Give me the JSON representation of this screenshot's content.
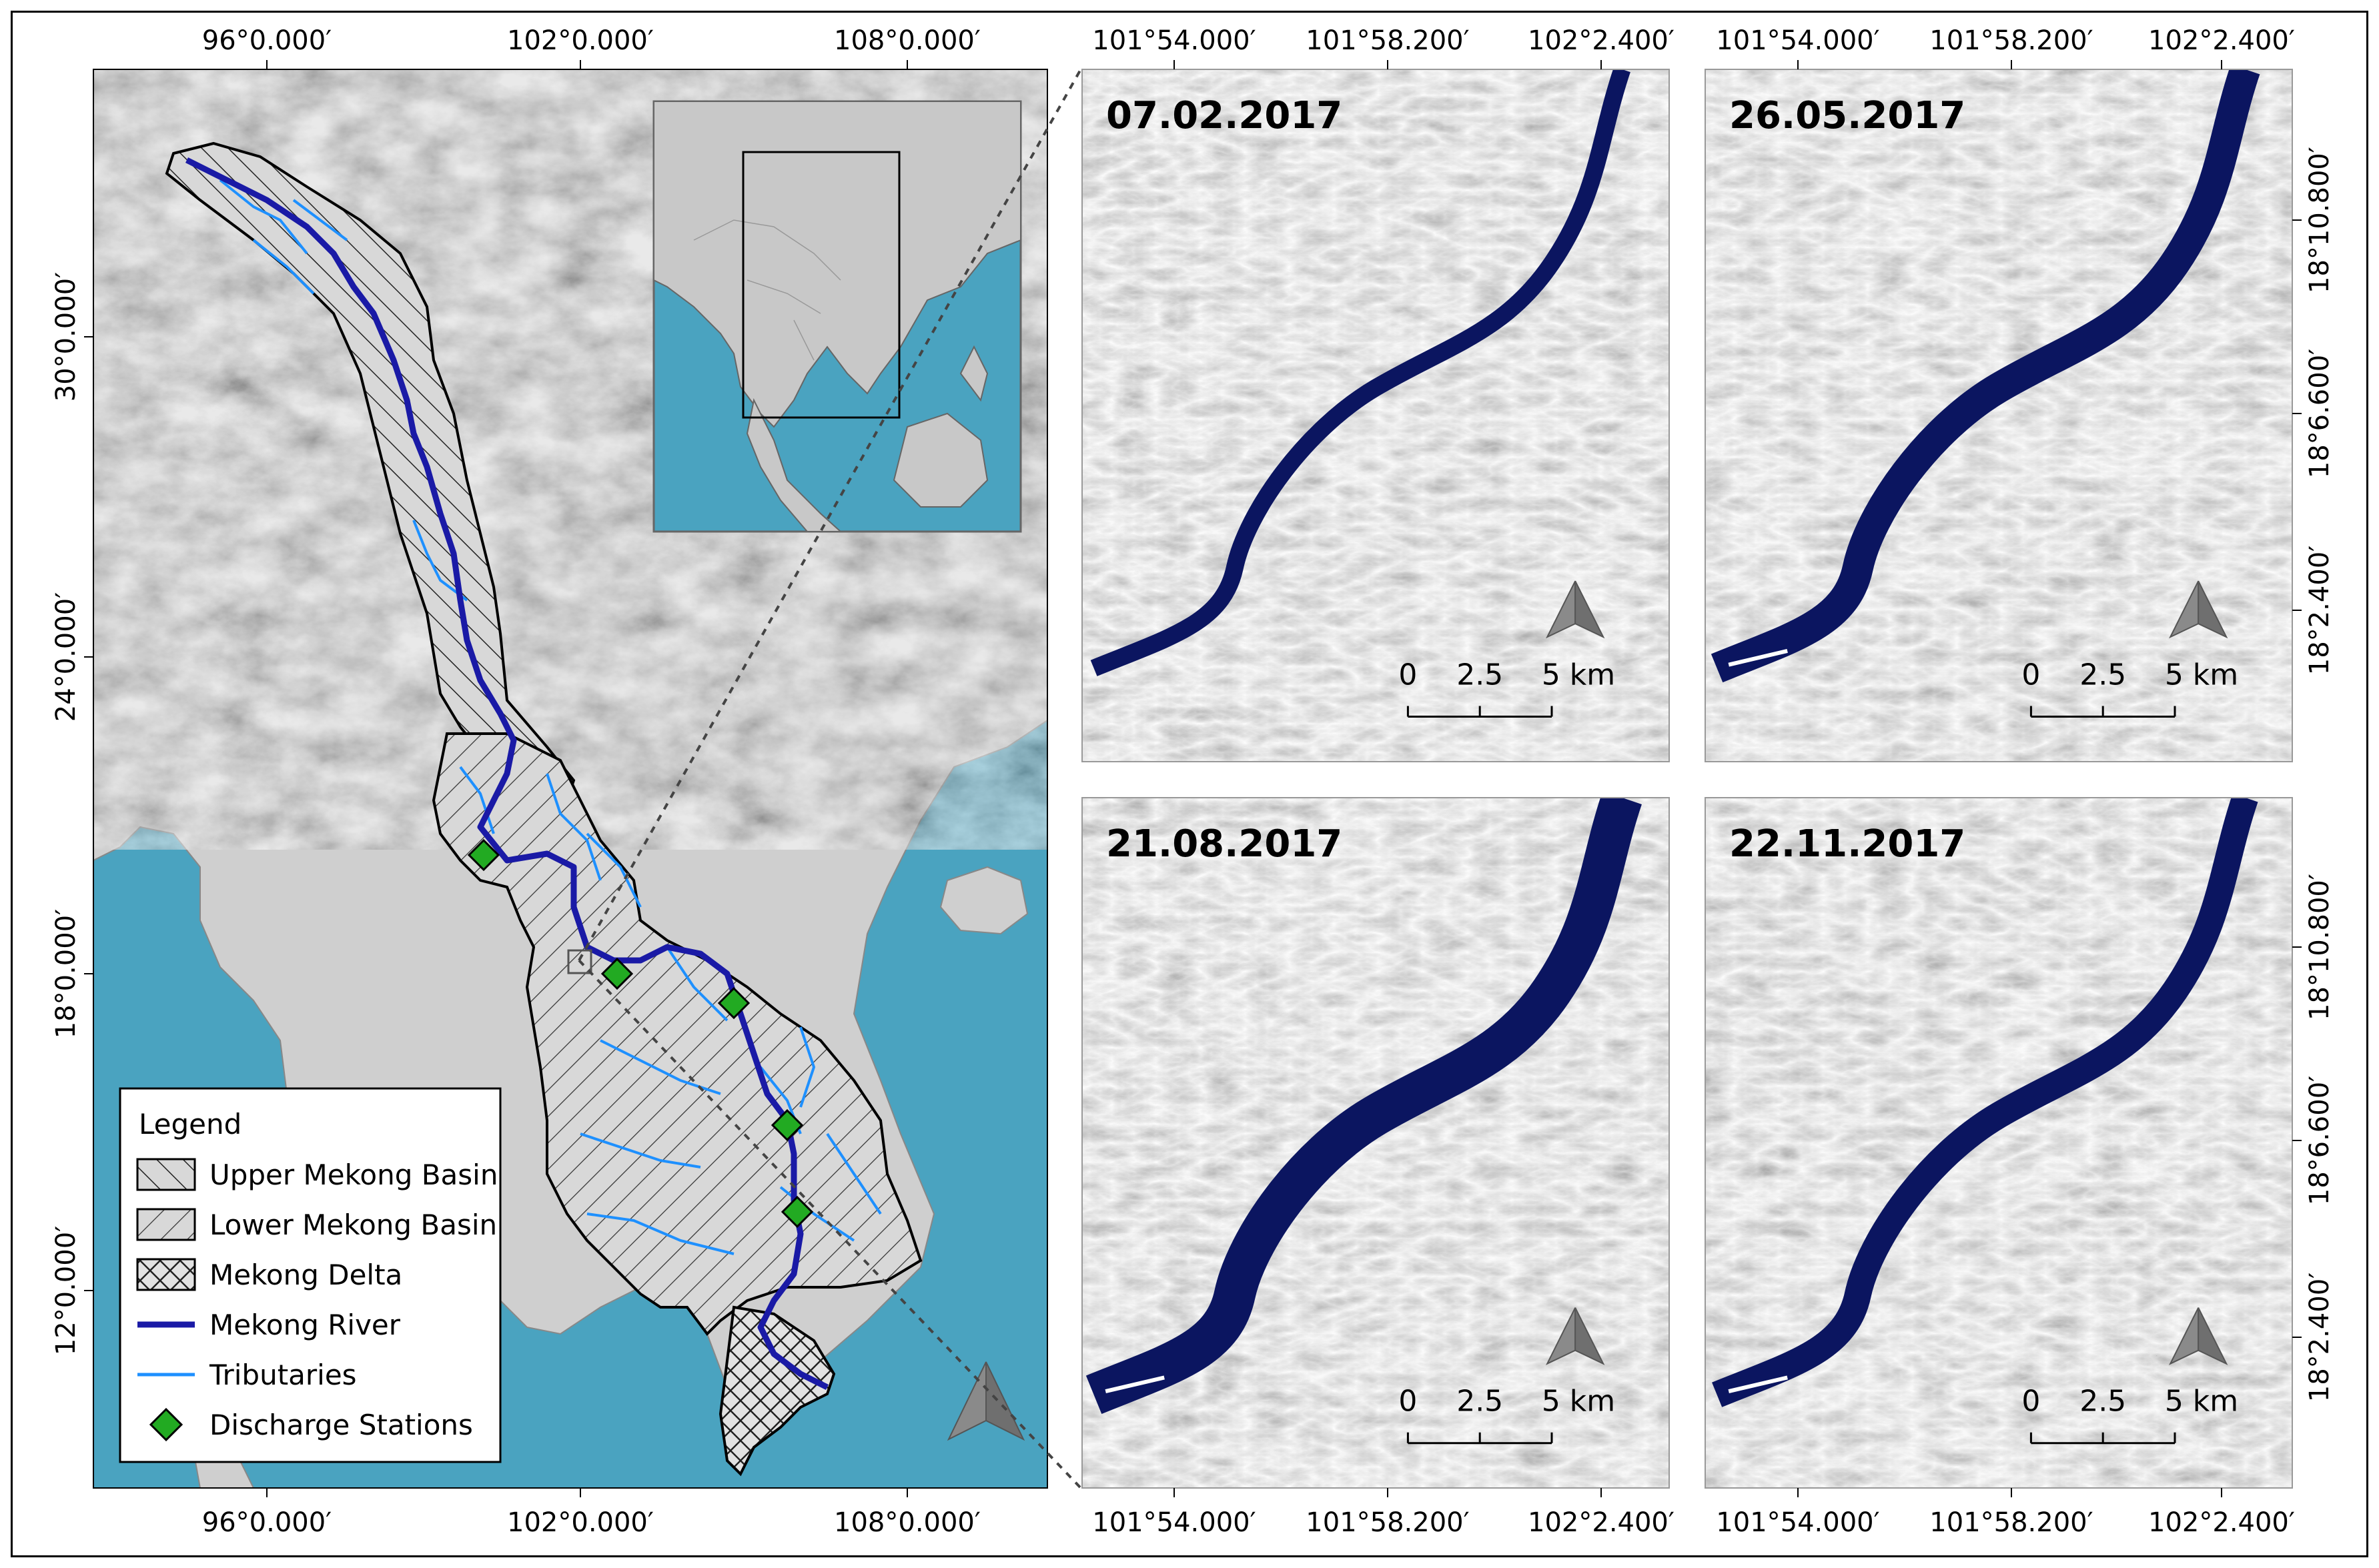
{
  "main_map": {
    "top_labels": [
      "96°0.000′",
      "102°0.000′",
      "108°0.000′"
    ],
    "bottom_labels": [
      "96°0.000′",
      "102°0.000′",
      "108°0.000′"
    ],
    "left_labels": [
      "30°0.000′",
      "24°0.000′",
      "18°0.000′",
      "12°0.000′"
    ]
  },
  "legend": {
    "title": "Legend",
    "items": [
      {
        "label": "Upper Mekong Basin",
        "symbol": "hatch-back"
      },
      {
        "label": "Lower Mekong Basin",
        "symbol": "hatch-forward"
      },
      {
        "label": "Mekong Delta",
        "symbol": "crosshatch"
      },
      {
        "label": "Mekong River",
        "symbol": "line",
        "color": "#1a1aa6"
      },
      {
        "label": "Tributaries",
        "symbol": "line",
        "color": "#1e90ff"
      },
      {
        "label": "Discharge Stations",
        "symbol": "diamond",
        "color": "#22aa22"
      }
    ]
  },
  "panels": [
    {
      "date": "07.02.2017"
    },
    {
      "date": "26.05.2017"
    },
    {
      "date": "21.08.2017"
    },
    {
      "date": "22.11.2017"
    }
  ],
  "panel_axes": {
    "top_labels": [
      "101°54.000′",
      "101°58.200′",
      "102°2.400′"
    ],
    "bottom_labels": [
      "101°54.000′",
      "101°58.200′",
      "102°2.400′"
    ],
    "right_labels": [
      "18°10.800′",
      "18°6.600′",
      "18°2.400′"
    ]
  },
  "scale_bar": {
    "ticks": [
      "0",
      "2.5",
      "5 km"
    ]
  },
  "colors": {
    "ocean": "#4aa3c0",
    "land_grey": "#cfcfcf",
    "river_main": "#1a1aa6",
    "river_panel": "#0b1560",
    "tributary": "#1e90ff",
    "station": "#22aa22"
  }
}
